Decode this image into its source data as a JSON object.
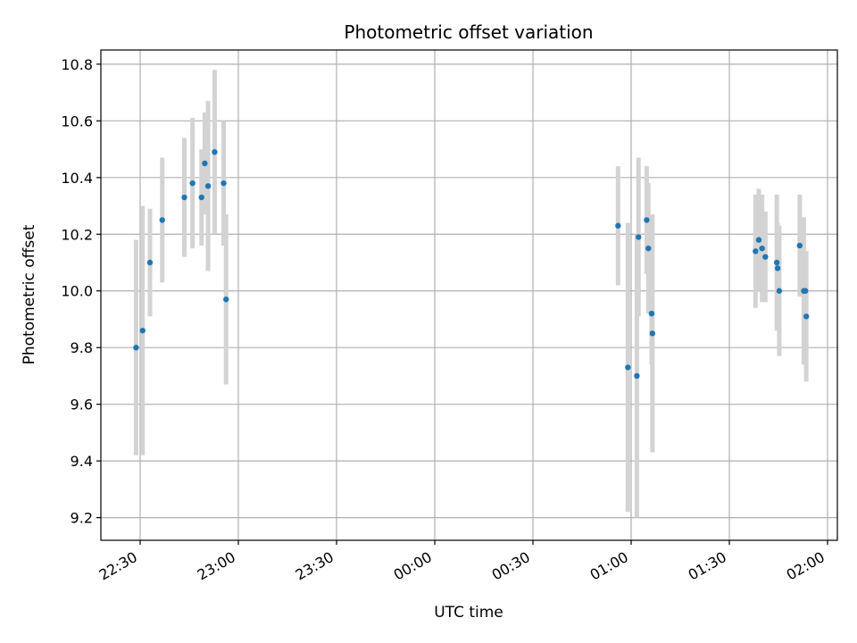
{
  "chart_data": {
    "type": "scatter",
    "title": "Photometric offset variation",
    "xlabel": "UTC time",
    "ylabel": "Photometric offset",
    "x_tick_labels": [
      "22:30",
      "23:00",
      "23:30",
      "00:00",
      "00:30",
      "01:00",
      "01:30",
      "02:00"
    ],
    "y_ticks": [
      9.2,
      9.4,
      9.6,
      9.8,
      10.0,
      10.2,
      10.4,
      10.6,
      10.8
    ],
    "y_tick_labels": [
      "9.2",
      "9.4",
      "9.6",
      "9.8",
      "10.0",
      "10.2",
      "10.4",
      "10.6",
      "10.8"
    ],
    "xlim": [
      "22:18",
      "02:03"
    ],
    "ylim": [
      9.12,
      10.85
    ],
    "grid": true,
    "point_color": "#1f77b4",
    "errorbar_color": "#d3d3d3",
    "points": [
      {
        "t": "22:28:45",
        "y": 9.8,
        "yerr": 0.38
      },
      {
        "t": "22:30:45",
        "y": 9.86,
        "yerr": 0.44
      },
      {
        "t": "22:33:00",
        "y": 10.1,
        "yerr": 0.19
      },
      {
        "t": "22:36:45",
        "y": 10.25,
        "yerr": 0.22
      },
      {
        "t": "22:43:30",
        "y": 10.33,
        "yerr": 0.21
      },
      {
        "t": "22:46:00",
        "y": 10.38,
        "yerr": 0.23
      },
      {
        "t": "22:48:45",
        "y": 10.33,
        "yerr": 0.17
      },
      {
        "t": "22:49:45",
        "y": 10.45,
        "yerr": 0.18
      },
      {
        "t": "22:50:45",
        "y": 10.37,
        "yerr": 0.3
      },
      {
        "t": "22:52:45",
        "y": 10.49,
        "yerr": 0.29
      },
      {
        "t": "22:55:30",
        "y": 10.38,
        "yerr": 0.22
      },
      {
        "t": "22:56:15",
        "y": 9.97,
        "yerr": 0.3
      },
      {
        "t": "00:56:00",
        "y": 10.23,
        "yerr": 0.21
      },
      {
        "t": "00:59:00",
        "y": 9.73,
        "yerr": 0.51
      },
      {
        "t": "01:01:45",
        "y": 9.7,
        "yerr": 0.5
      },
      {
        "t": "01:02:15",
        "y": 10.19,
        "yerr": 0.28
      },
      {
        "t": "01:04:45",
        "y": 10.25,
        "yerr": 0.19
      },
      {
        "t": "01:05:15",
        "y": 10.15,
        "yerr": 0.23
      },
      {
        "t": "01:06:15",
        "y": 9.92,
        "yerr": 0.18
      },
      {
        "t": "01:06:30",
        "y": 9.85,
        "yerr": 0.42
      },
      {
        "t": "01:38:00",
        "y": 10.14,
        "yerr": 0.2
      },
      {
        "t": "01:39:00",
        "y": 10.18,
        "yerr": 0.18
      },
      {
        "t": "01:40:00",
        "y": 10.15,
        "yerr": 0.19
      },
      {
        "t": "01:41:00",
        "y": 10.12,
        "yerr": 0.16
      },
      {
        "t": "01:44:30",
        "y": 10.1,
        "yerr": 0.24
      },
      {
        "t": "01:44:45",
        "y": 10.08,
        "yerr": 0.16
      },
      {
        "t": "01:45:15",
        "y": 10.0,
        "yerr": 0.23
      },
      {
        "t": "01:51:30",
        "y": 10.16,
        "yerr": 0.18
      },
      {
        "t": "01:52:45",
        "y": 10.0,
        "yerr": 0.26
      },
      {
        "t": "01:53:15",
        "y": 10.0,
        "yerr": 0.13
      },
      {
        "t": "01:53:30",
        "y": 9.91,
        "yerr": 0.23
      }
    ]
  }
}
